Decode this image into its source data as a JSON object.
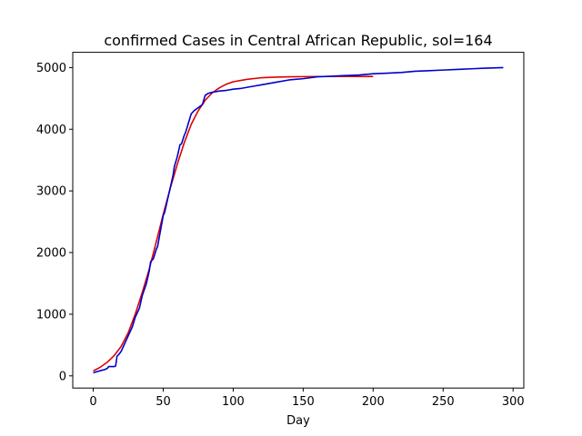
{
  "chart_data": {
    "type": "line",
    "title": "confirmed Cases in Central African Republic, sol=164",
    "xlabel": "Day",
    "ylabel": "",
    "xlim": [
      -14.65,
      307.65
    ],
    "ylim": [
      -197.6,
      5247.6
    ],
    "xticks": [
      0,
      50,
      100,
      150,
      200,
      250,
      300
    ],
    "yticks": [
      0,
      1000,
      2000,
      3000,
      4000,
      5000
    ],
    "grid": false,
    "series": [
      {
        "color": "#dd0000",
        "x": [
          0,
          5,
          10,
          15,
          20,
          25,
          30,
          35,
          40,
          45,
          50,
          55,
          60,
          65,
          70,
          75,
          80,
          85,
          90,
          95,
          100,
          110,
          120,
          130,
          140,
          150,
          160,
          170,
          180,
          190,
          200
        ],
        "values": [
          80,
          140,
          220,
          330,
          480,
          700,
          1000,
          1350,
          1730,
          2170,
          2620,
          3040,
          3430,
          3780,
          4080,
          4300,
          4470,
          4590,
          4670,
          4730,
          4770,
          4810,
          4835,
          4845,
          4850,
          4853,
          4855,
          4855,
          4856,
          4856,
          4856
        ]
      },
      {
        "color": "#0000cc",
        "x": [
          0,
          3,
          6,
          8,
          10,
          11,
          15,
          16,
          17,
          18,
          20,
          22,
          25,
          28,
          30,
          33,
          35,
          38,
          40,
          41,
          43,
          45,
          46,
          48,
          50,
          51,
          53,
          55,
          57,
          58,
          60,
          62,
          63,
          65,
          66,
          68,
          70,
          72,
          75,
          78,
          80,
          82,
          85,
          88,
          90,
          95,
          100,
          105,
          110,
          115,
          120,
          130,
          140,
          150,
          160,
          170,
          180,
          190,
          200,
          210,
          220,
          230,
          240,
          250,
          260,
          270,
          280,
          293
        ],
        "values": [
          50,
          70,
          90,
          100,
          120,
          150,
          150,
          160,
          320,
          340,
          400,
          500,
          650,
          800,
          950,
          1100,
          1300,
          1500,
          1700,
          1850,
          1900,
          2050,
          2100,
          2350,
          2600,
          2650,
          2850,
          3050,
          3250,
          3400,
          3550,
          3750,
          3760,
          3900,
          3950,
          4100,
          4250,
          4300,
          4350,
          4400,
          4550,
          4580,
          4600,
          4610,
          4620,
          4630,
          4650,
          4660,
          4680,
          4700,
          4720,
          4760,
          4800,
          4820,
          4850,
          4860,
          4870,
          4880,
          4900,
          4910,
          4920,
          4940,
          4950,
          4960,
          4970,
          4980,
          4990,
          5000
        ]
      }
    ]
  }
}
